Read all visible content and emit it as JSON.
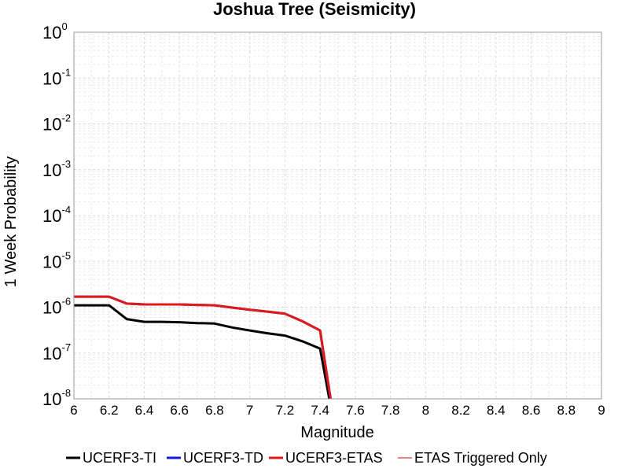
{
  "chart_data": {
    "type": "line",
    "title": "Joshua Tree (Seismicity)",
    "xlabel": "Magnitude",
    "ylabel": "1 Week Probability",
    "xlim": [
      6,
      9
    ],
    "ylim": [
      1e-08,
      1
    ],
    "y_scale": "log",
    "grid": true,
    "legend_position": "bottom",
    "x_ticks": [
      "6",
      "6.2",
      "6.4",
      "6.6",
      "6.8",
      "7",
      "7.2",
      "7.4",
      "7.6",
      "7.8",
      "8",
      "8.2",
      "8.4",
      "8.6",
      "8.8",
      "9"
    ],
    "y_ticks": [
      {
        "base": "10",
        "exp": "-8",
        "value": 1e-08
      },
      {
        "base": "10",
        "exp": "-7",
        "value": 1e-07
      },
      {
        "base": "10",
        "exp": "-6",
        "value": 1e-06
      },
      {
        "base": "10",
        "exp": "-5",
        "value": 1e-05
      },
      {
        "base": "10",
        "exp": "-4",
        "value": 0.0001
      },
      {
        "base": "10",
        "exp": "-3",
        "value": 0.001
      },
      {
        "base": "10",
        "exp": "-2",
        "value": 0.01
      },
      {
        "base": "10",
        "exp": "-1",
        "value": 0.1
      },
      {
        "base": "10",
        "exp": "0",
        "value": 1
      }
    ],
    "series": [
      {
        "name": "UCERF3-TI",
        "color": "#000000",
        "x": [
          6.0,
          6.2,
          6.3,
          6.4,
          6.5,
          6.6,
          6.7,
          6.8,
          6.9,
          7.0,
          7.1,
          7.2,
          7.3,
          7.4,
          7.5
        ],
        "y": [
          1.1e-06,
          1.1e-06,
          5.5e-07,
          4.8e-07,
          4.8e-07,
          4.7e-07,
          4.5e-07,
          4.4e-07,
          3.6e-07,
          3.1e-07,
          2.7e-07,
          2.4e-07,
          1.8e-07,
          1.25e-07,
          1e-09
        ]
      },
      {
        "name": "UCERF3-TD",
        "color": "#1a1adc",
        "x": [
          6.0,
          6.2,
          6.3,
          6.4,
          6.5,
          6.6,
          6.7,
          6.8,
          6.9,
          7.0,
          7.1,
          7.2,
          7.3,
          7.4,
          7.5
        ],
        "y": [
          1.7e-06,
          1.7e-06,
          1.2e-06,
          1.15e-06,
          1.15e-06,
          1.15e-06,
          1.12e-06,
          1.1e-06,
          9.8e-07,
          8.8e-07,
          8e-07,
          7.2e-07,
          4.9e-07,
          3.1e-07,
          1e-09
        ]
      },
      {
        "name": "UCERF3-ETAS",
        "color": "#e01a1a",
        "x": [
          6.0,
          6.2,
          6.3,
          6.4,
          6.5,
          6.6,
          6.7,
          6.8,
          6.9,
          7.0,
          7.1,
          7.2,
          7.3,
          7.4,
          7.5
        ],
        "y": [
          1.7e-06,
          1.7e-06,
          1.2e-06,
          1.15e-06,
          1.15e-06,
          1.15e-06,
          1.12e-06,
          1.1e-06,
          9.8e-07,
          8.8e-07,
          8e-07,
          7.2e-07,
          4.9e-07,
          3.1e-07,
          1e-09
        ]
      },
      {
        "name": "ETAS Triggered Only",
        "color": "#f08080",
        "x": [],
        "y": []
      }
    ]
  }
}
